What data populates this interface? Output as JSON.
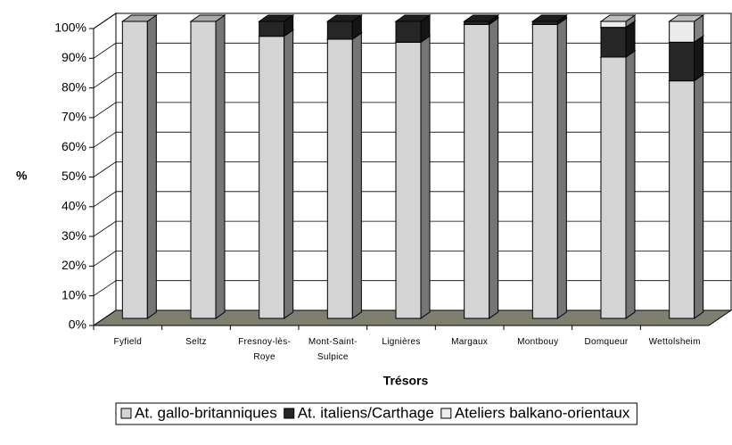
{
  "chart_data": {
    "type": "bar3d_stacked",
    "xlabel": "Trésors",
    "ylabel": "%",
    "categories": [
      "Fyfield",
      "Seltz",
      "Fresnoy-lès-Roye",
      "Mont-Saint-Sulpice",
      "Lignières",
      "Margaux",
      "Montbouy",
      "Domqueur",
      "Wettolsheim"
    ],
    "series": [
      {
        "name": "At. gallo-britanniques",
        "color": "#d4d4d4",
        "values": [
          100,
          100,
          95,
          94,
          93,
          99,
          99,
          88,
          80
        ]
      },
      {
        "name": "At. italiens/Carthage",
        "color": "#262626",
        "values": [
          0,
          0,
          5,
          6,
          7,
          1,
          1,
          10,
          13
        ]
      },
      {
        "name": "Ateliers balkano-orientaux",
        "color": "#ececec",
        "values": [
          0,
          0,
          0,
          0,
          0,
          0,
          0,
          2,
          7
        ]
      }
    ],
    "ylim": [
      0,
      100
    ],
    "yticks": [
      {
        "value": 0,
        "label": "0%"
      },
      {
        "value": 10,
        "label": "10%"
      },
      {
        "value": 20,
        "label": "20%"
      },
      {
        "value": 30,
        "label": "30%"
      },
      {
        "value": 40,
        "label": "40%"
      },
      {
        "value": 50,
        "label": "50%"
      },
      {
        "value": 60,
        "label": "60%"
      },
      {
        "value": 70,
        "label": "70%"
      },
      {
        "value": 80,
        "label": "80%"
      },
      {
        "value": 90,
        "label": "90%"
      },
      {
        "value": 100,
        "label": "100%"
      }
    ],
    "grid": true,
    "legend": "bottom"
  }
}
